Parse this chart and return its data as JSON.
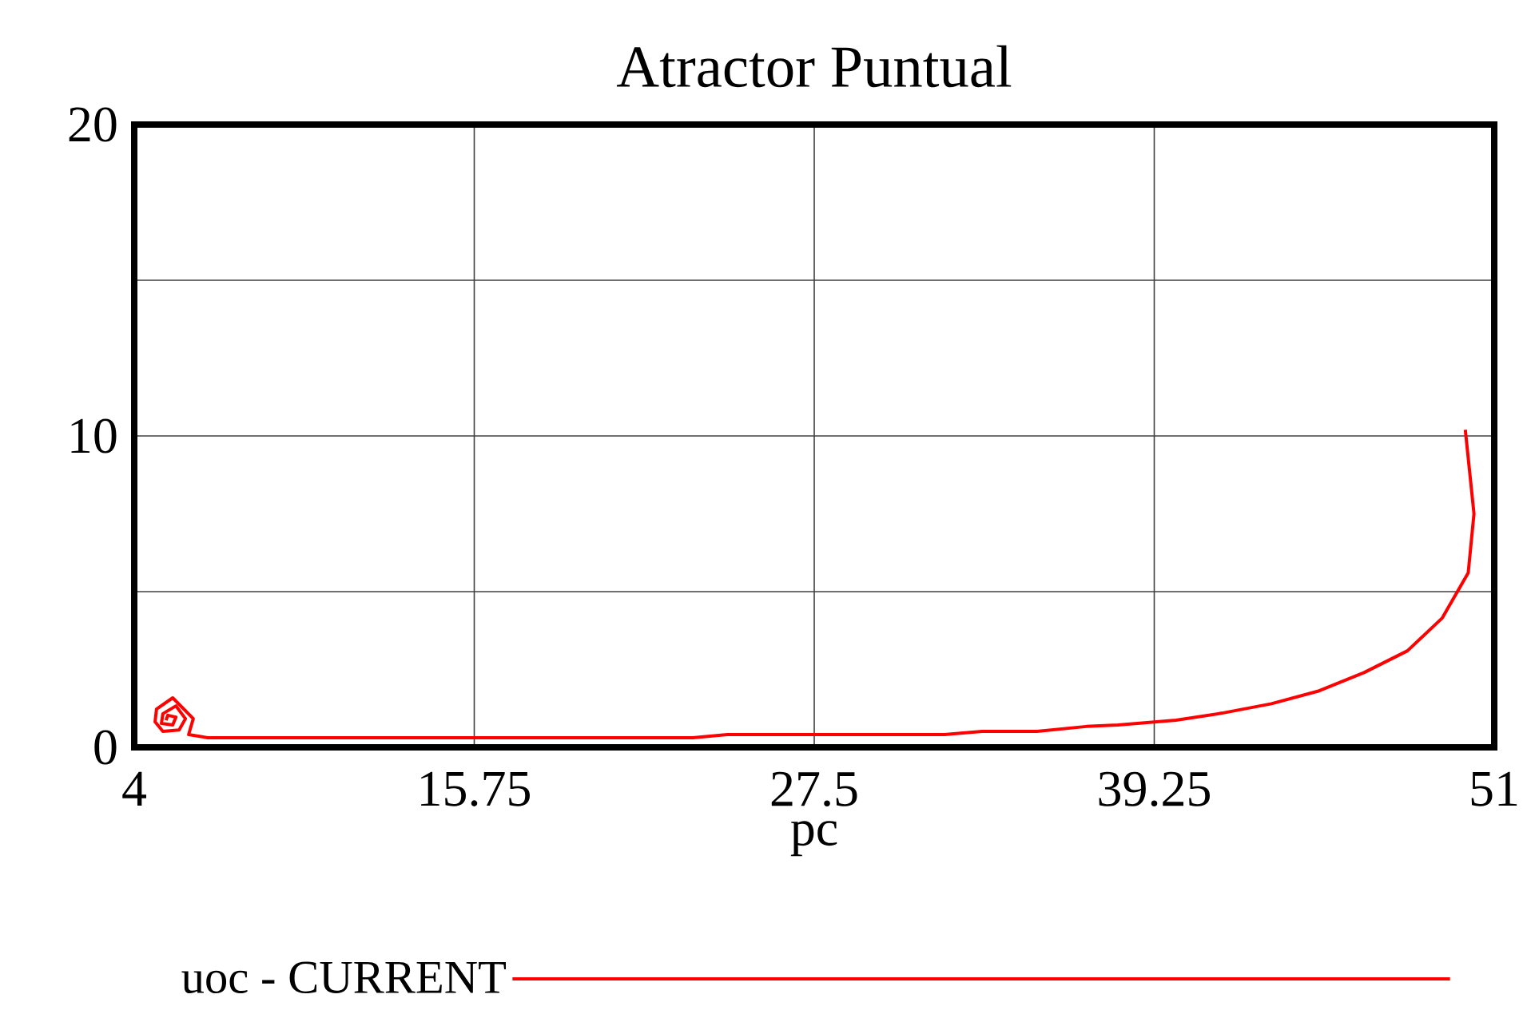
{
  "chart_data": {
    "type": "line",
    "title": "Atractor Puntual",
    "xlabel": "pc",
    "xlim": [
      4,
      51
    ],
    "xticks": [
      4,
      15.75,
      27.5,
      39.25,
      51
    ],
    "ylim": [
      0,
      20
    ],
    "yticks": [
      0,
      {
        "value": 5,
        "label": null
      },
      10,
      {
        "value": 15,
        "label": null
      },
      20
    ],
    "grid": true,
    "legend": "bottom",
    "marker": "none",
    "line_style": "solid",
    "series": [
      {
        "name": "uoc - CURRENT",
        "color": "#ff0000",
        "x": [
          50.0,
          50.3,
          50.1,
          49.2,
          48.0,
          46.5,
          44.9,
          43.3,
          41.6,
          40.0,
          38.0,
          36.9,
          35.2,
          33.3,
          32.0,
          24.5,
          23.3,
          6.54,
          5.88,
          6.04,
          5.33,
          4.77,
          4.72,
          4.99,
          5.55,
          5.77,
          5.44,
          4.99,
          4.94,
          5.33,
          5.44,
          5.16,
          5.1
        ],
        "values": [
          10.2,
          7.5,
          5.6,
          4.15,
          3.1,
          2.4,
          1.8,
          1.4,
          1.1,
          0.87,
          0.72,
          0.67,
          0.51,
          0.51,
          0.41,
          0.41,
          0.31,
          0.31,
          0.41,
          0.92,
          1.59,
          1.23,
          0.82,
          0.51,
          0.56,
          0.92,
          1.33,
          1.08,
          0.77,
          0.72,
          0.97,
          1.03,
          0.87
        ]
      }
    ]
  }
}
